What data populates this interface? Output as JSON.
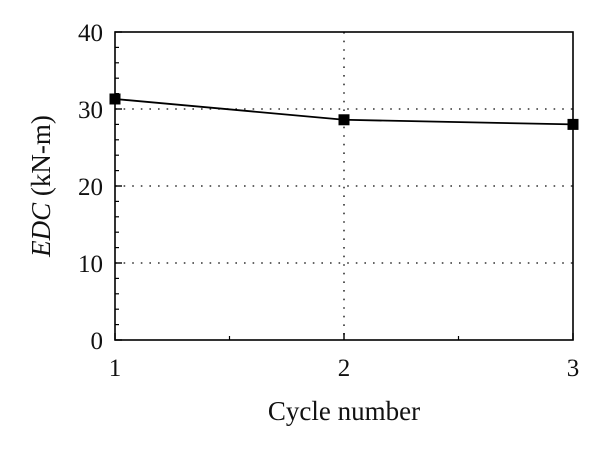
{
  "chart_data": {
    "type": "line",
    "title": "",
    "xlabel": "Cycle number",
    "ylabel_italic": "EDC",
    "ylabel_unit": " (kN-m)",
    "x": [
      1,
      2,
      3
    ],
    "xticks": [
      "1",
      "2",
      "3"
    ],
    "xlim": [
      1,
      3
    ],
    "ylim": [
      0,
      40
    ],
    "yticks": [
      "0",
      "10",
      "20",
      "30",
      "40"
    ],
    "series": [
      {
        "values": [
          31.3,
          28.6,
          28.0
        ]
      }
    ],
    "grid": "dotted",
    "marker": "square",
    "colors": {
      "line": "#000000",
      "grid": "#333333"
    }
  }
}
